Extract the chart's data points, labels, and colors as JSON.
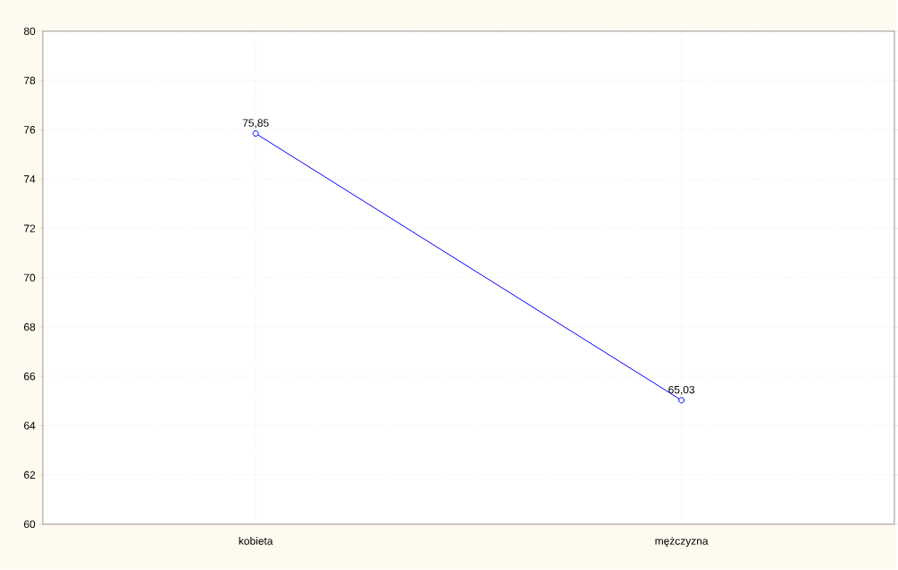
{
  "chart_data": {
    "type": "line",
    "categories": [
      "kobieta",
      "mężczyzna"
    ],
    "series": [
      {
        "color": "#0000ff",
        "values": [
          75.85,
          65.03
        ],
        "value_labels": [
          "75,85",
          "65,03"
        ]
      }
    ],
    "ylim": [
      60,
      80
    ],
    "yticks": [
      60,
      62,
      64,
      66,
      68,
      70,
      72,
      74,
      76,
      78,
      80
    ],
    "grid": true,
    "marker": "circle",
    "line_style": "solid"
  }
}
